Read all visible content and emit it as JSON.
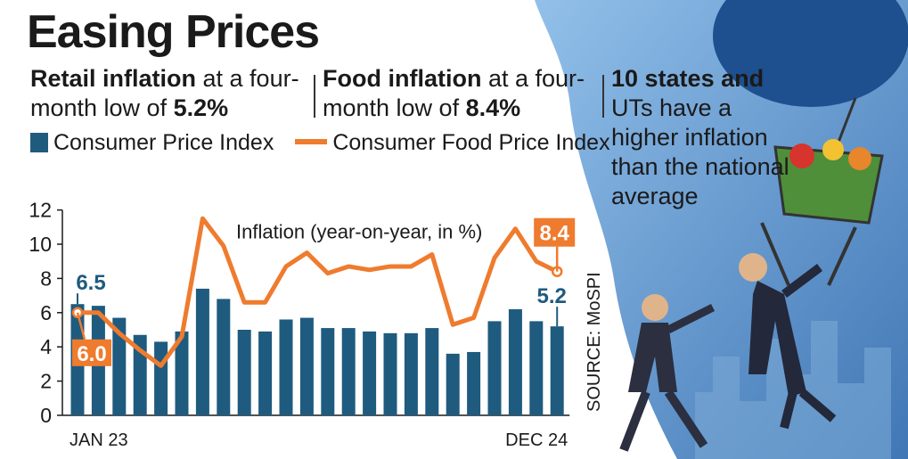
{
  "title": "Easing Prices",
  "subheads": [
    {
      "bold": "Retail inflation",
      "rest": " at a four-month low of ",
      "value": "5.2%"
    },
    {
      "bold": "Food inflation",
      "rest": " at a four-month low of ",
      "value": "8.4%"
    },
    {
      "bold": "10 states and",
      "rest": "UTs have a higher inflation than the national average",
      "value": ""
    }
  ],
  "colors": {
    "bar": "#1f5b7f",
    "line": "#ef7b2e",
    "text": "#1a1a1a",
    "sky": "#2a6fb5"
  },
  "chart_data": {
    "type": "bar",
    "subtitle": "Inflation (year-on-year, in %)",
    "legend": [
      {
        "name": "Consumer Price Index",
        "kind": "bar"
      },
      {
        "name": "Consumer Food Price Index",
        "kind": "line"
      }
    ],
    "x_tick_labels": [
      "JAN 23",
      "DEC 24"
    ],
    "ylim": [
      0,
      12
    ],
    "yticks": [
      "0",
      "2",
      "4",
      "6",
      "8",
      "10",
      "12"
    ],
    "grid": false,
    "series": [
      {
        "name": "Consumer Price Index",
        "type": "bar",
        "values": [
          6.5,
          6.4,
          5.7,
          4.7,
          4.3,
          4.9,
          7.4,
          6.8,
          5.0,
          4.9,
          5.6,
          5.7,
          5.1,
          5.1,
          4.9,
          4.8,
          4.8,
          5.1,
          3.6,
          3.7,
          5.5,
          6.2,
          5.5,
          5.2
        ]
      },
      {
        "name": "Consumer Food Price Index",
        "type": "line",
        "values": [
          6.0,
          6.0,
          4.8,
          3.8,
          2.9,
          4.6,
          11.5,
          9.9,
          6.6,
          6.6,
          8.7,
          9.5,
          8.3,
          8.7,
          8.5,
          8.7,
          8.7,
          9.4,
          5.3,
          5.7,
          9.2,
          10.9,
          9.0,
          8.4
        ]
      }
    ],
    "annotations": [
      {
        "label": "6.5",
        "series": 0,
        "index": 0
      },
      {
        "label": "6.0",
        "series": 1,
        "index": 0
      },
      {
        "label": "5.2",
        "series": 0,
        "index": 23
      },
      {
        "label": "8.4",
        "series": 1,
        "index": 23
      }
    ],
    "source": "SOURCE: MoSPI"
  }
}
